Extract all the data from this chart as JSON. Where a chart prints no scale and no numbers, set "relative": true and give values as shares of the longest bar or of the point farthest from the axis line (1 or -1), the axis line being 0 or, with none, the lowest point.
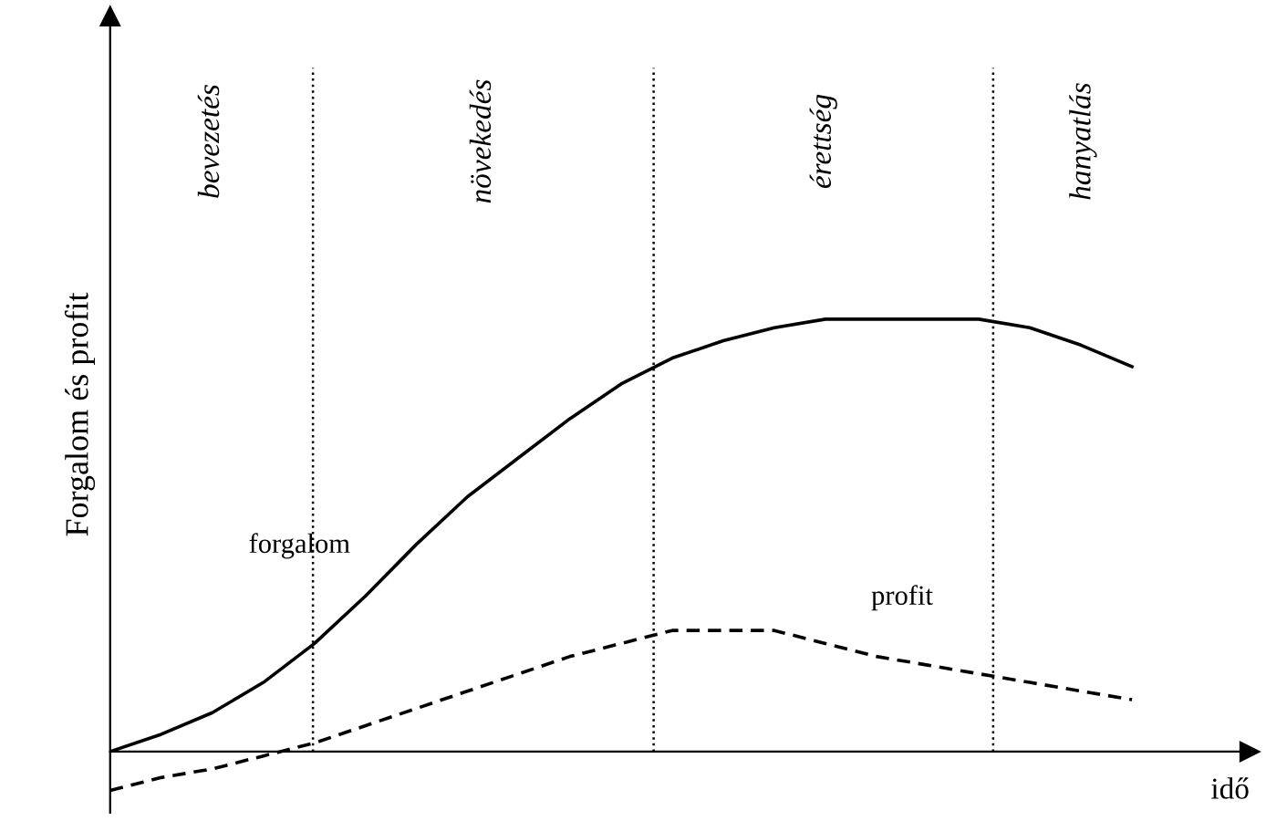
{
  "chart_data": {
    "type": "line",
    "relative": true,
    "xlabel": "idő",
    "ylabel": "Forgalom és profit",
    "categories": [
      null,
      null,
      null,
      null,
      null,
      null,
      null,
      null,
      null,
      null,
      null,
      null,
      null,
      null,
      null,
      null,
      null,
      null,
      null,
      null,
      null
    ],
    "series": [
      {
        "name": "forgalom",
        "color": "#000000",
        "line_style": "solid",
        "values": [
          0,
          0.04,
          0.09,
          0.16,
          0.25,
          0.36,
          0.48,
          0.59,
          0.68,
          0.77,
          0.85,
          0.91,
          0.95,
          0.98,
          1.0,
          1.0,
          1.0,
          1.0,
          0.98,
          0.94,
          0.89
        ]
      },
      {
        "name": "profit",
        "color": "#000000",
        "line_style": "dashed",
        "values": [
          -0.09,
          -0.06,
          -0.04,
          -0.01,
          0.02,
          0.06,
          0.1,
          0.14,
          0.18,
          0.22,
          0.25,
          0.28,
          0.28,
          0.28,
          0.25,
          0.22,
          0.2,
          0.18,
          0.16,
          0.14,
          0.12
        ]
      }
    ],
    "annotations": [
      "bevezetés",
      "növekedés",
      "érettség",
      "hanyatlás"
    ],
    "legend": false
  }
}
